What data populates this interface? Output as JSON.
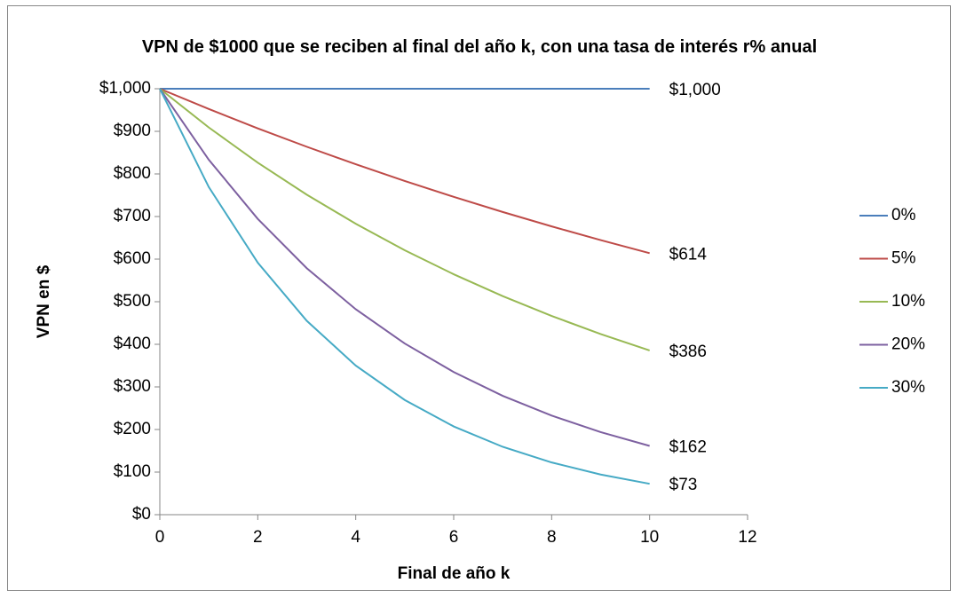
{
  "chart_data": {
    "type": "line",
    "title": "VPN de $1000 que se reciben al final del año k, con una tasa de interés r% anual",
    "x_label": "Final de año k",
    "y_label": "VPN en $",
    "x": [
      0,
      1,
      2,
      3,
      4,
      5,
      6,
      7,
      8,
      9,
      10
    ],
    "series": [
      {
        "name": "0%",
        "color": "#4a7ebb",
        "values": [
          1000,
          1000,
          1000,
          1000,
          1000,
          1000,
          1000,
          1000,
          1000,
          1000,
          1000
        ],
        "value_labels": [
          null,
          null,
          null,
          null,
          null,
          null,
          null,
          null,
          null,
          null,
          "$1,000"
        ]
      },
      {
        "name": "5%",
        "color": "#be4b48",
        "values": [
          1000,
          952.4,
          907.0,
          863.8,
          822.7,
          783.5,
          746.2,
          710.7,
          676.8,
          644.6,
          613.9
        ],
        "value_labels": [
          null,
          null,
          null,
          null,
          null,
          null,
          null,
          null,
          null,
          null,
          "$614"
        ]
      },
      {
        "name": "10%",
        "color": "#98b954",
        "values": [
          1000,
          909.1,
          826.4,
          751.3,
          683.0,
          620.9,
          564.5,
          513.2,
          466.5,
          424.1,
          385.5
        ],
        "value_labels": [
          null,
          null,
          null,
          null,
          null,
          null,
          null,
          null,
          null,
          null,
          "$386"
        ]
      },
      {
        "name": "20%",
        "color": "#7d60a0",
        "values": [
          1000,
          833.3,
          694.4,
          578.7,
          482.3,
          401.9,
          334.9,
          279.1,
          232.6,
          193.8,
          161.5
        ],
        "value_labels": [
          null,
          null,
          null,
          null,
          null,
          null,
          null,
          null,
          null,
          null,
          "$162"
        ]
      },
      {
        "name": "30%",
        "color": "#46aac5",
        "values": [
          1000,
          769.2,
          591.7,
          455.2,
          350.1,
          269.3,
          207.2,
          159.4,
          122.6,
          94.3,
          72.5
        ],
        "value_labels": [
          null,
          null,
          null,
          null,
          null,
          null,
          null,
          null,
          null,
          null,
          "$73"
        ]
      }
    ],
    "xlim": [
      0,
      12
    ],
    "xticks": [
      0,
      2,
      4,
      6,
      8,
      10,
      12
    ],
    "ylim": [
      0,
      1000
    ],
    "yticks": [
      {
        "value": 0,
        "label": "$0"
      },
      {
        "value": 100,
        "label": "$100"
      },
      {
        "value": 200,
        "label": "$200"
      },
      {
        "value": 300,
        "label": "$300"
      },
      {
        "value": 400,
        "label": "$400"
      },
      {
        "value": 500,
        "label": "$500"
      },
      {
        "value": 600,
        "label": "$600"
      },
      {
        "value": 700,
        "label": "$700"
      },
      {
        "value": 800,
        "label": "$800"
      },
      {
        "value": 900,
        "label": "$900"
      },
      {
        "value": 1000,
        "label": "$1,000"
      }
    ],
    "grid": false,
    "legend": "right"
  }
}
